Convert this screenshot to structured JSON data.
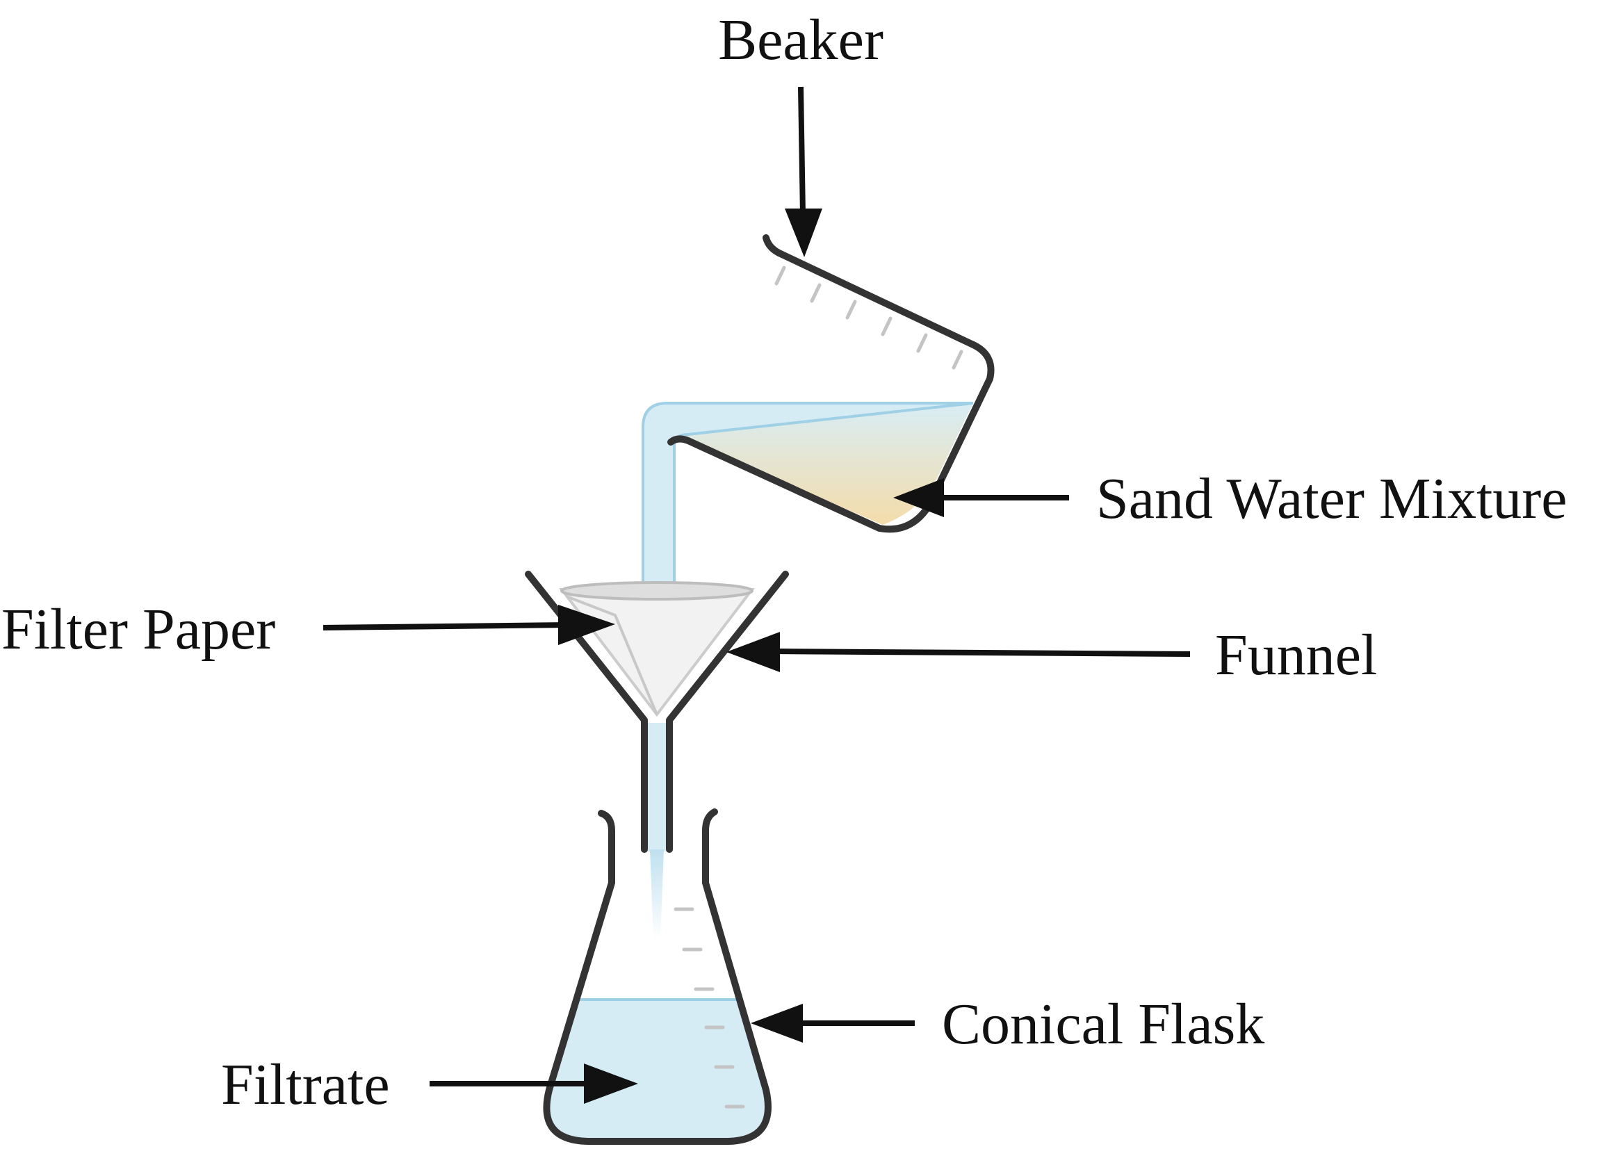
{
  "labels": {
    "beaker": "Beaker",
    "sand_water_mixture": "Sand Water Mixture",
    "filter_paper": "Filter Paper",
    "funnel": "Funnel",
    "conical_flask": "Conical Flask",
    "filtrate": "Filtrate"
  },
  "colors": {
    "outline": "#333333",
    "label_text": "#111111",
    "water": "#d6ecf5",
    "water_stream": "#bfe0ef",
    "mixture_sand": "#f3ddb0",
    "filter_paper": "#f2f2f2"
  }
}
